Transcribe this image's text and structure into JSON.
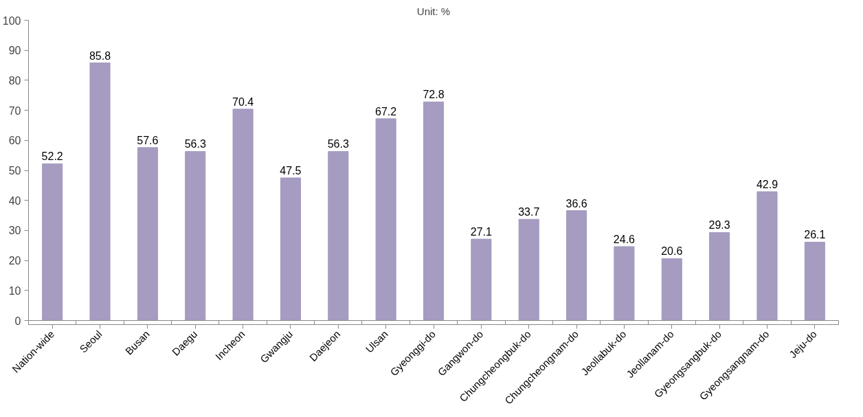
{
  "chart_data": {
    "type": "bar",
    "title": "Unit: %",
    "categories": [
      "Nation-wide",
      "Seoul",
      "Busan",
      "Daegu",
      "Incheon",
      "Gwangju",
      "Daejeon",
      "Ulsan",
      "Gyeonggi-do",
      "Gangwon-do",
      "Chungcheongbuk-do",
      "Chungcheongnam-do",
      "Jeollabuk-do",
      "Jeollanam-do",
      "Gyeongsangbuk-do",
      "Gyeongsangnam-do",
      "Jeju-do"
    ],
    "values": [
      52.2,
      85.8,
      57.6,
      56.3,
      70.4,
      47.5,
      56.3,
      67.2,
      72.8,
      27.1,
      33.7,
      36.6,
      24.6,
      20.6,
      29.3,
      42.9,
      26.1
    ],
    "color": "#a69bc0",
    "ylim": [
      0,
      100
    ],
    "yticks": [
      0,
      10,
      20,
      30,
      40,
      50,
      60,
      70,
      80,
      90,
      100
    ],
    "data_labels": true,
    "grid": false
  }
}
